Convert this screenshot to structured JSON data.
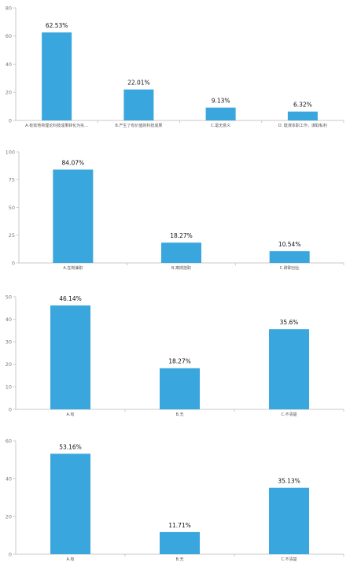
{
  "colors": {
    "bar": "#3aa6de",
    "axis": "#c8c8c8"
  },
  "chart_data": [
    {
      "type": "bar",
      "categories": [
        "A.有效地将理论科技成果转化为实…",
        "B.产生了有价值的科技成果",
        "C.毫无意义",
        "D. 耽误本职工作，谋取私利"
      ],
      "values": [
        62.53,
        22.01,
        9.13,
        6.32
      ],
      "data_labels": [
        "62.53%",
        "22.01%",
        "9.13%",
        "6.32%"
      ],
      "ylim": [
        0,
        80
      ],
      "yticks": [
        0,
        20,
        40,
        60,
        80
      ],
      "ytick_labels": [
        "0",
        "20",
        "40",
        "60",
        "80"
      ],
      "grid": false,
      "legend": "none"
    },
    {
      "type": "bar",
      "categories": [
        "A.在岗兼职",
        "B.离岗挂职",
        "C.辞职创业"
      ],
      "values": [
        84.07,
        18.27,
        10.54
      ],
      "data_labels": [
        "84.07%",
        "18.27%",
        "10.54%"
      ],
      "ylim": [
        0,
        100
      ],
      "yticks": [
        0,
        25,
        50,
        75,
        100
      ],
      "ytick_labels": [
        "0",
        "25",
        "50",
        "75",
        "100"
      ],
      "grid": false,
      "legend": "none"
    },
    {
      "type": "bar",
      "categories": [
        "A.有",
        "B.无",
        "C.不清楚"
      ],
      "values": [
        46.14,
        18.27,
        35.6
      ],
      "data_labels": [
        "46.14%",
        "18.27%",
        "35.6%"
      ],
      "ylim": [
        0,
        50
      ],
      "yticks": [
        0,
        10,
        20,
        30,
        40,
        50
      ],
      "ytick_labels": [
        "0",
        "10",
        "20",
        "30",
        "40",
        "50"
      ],
      "grid": false,
      "legend": "none"
    },
    {
      "type": "bar",
      "categories": [
        "A.有",
        "B.无",
        "C.不清楚"
      ],
      "values": [
        53.16,
        11.71,
        35.13
      ],
      "data_labels": [
        "53.16%",
        "11.71%",
        "35.13%"
      ],
      "ylim": [
        0,
        60
      ],
      "yticks": [
        0,
        20,
        40,
        60
      ],
      "ytick_labels": [
        "0",
        "20",
        "40",
        "60"
      ],
      "grid": false,
      "legend": "none"
    }
  ]
}
